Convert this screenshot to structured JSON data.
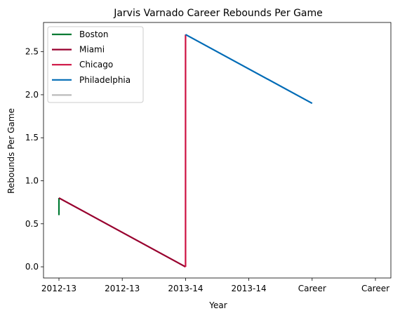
{
  "chart_data": {
    "type": "line",
    "title": "Jarvis Varnado Career Rebounds Per Game",
    "xlabel": "Year",
    "ylabel": "Rebounds Per Game",
    "x_ticks": [
      "2012-13",
      "2012-13",
      "2013-14",
      "2013-14",
      "Career",
      "Career"
    ],
    "y_ticks": [
      "0.0",
      "0.5",
      "1.0",
      "1.5",
      "2.0",
      "2.5"
    ],
    "x_range": [
      0,
      5
    ],
    "ylim": [
      -0.13,
      2.84
    ],
    "legend_position": "upper-left",
    "series": [
      {
        "name": "Boston",
        "color": "#007a33",
        "points": [
          [
            0,
            0.6
          ],
          [
            0,
            0.8
          ]
        ]
      },
      {
        "name": "Miami",
        "color": "#98002e",
        "points": [
          [
            0,
            0.8
          ],
          [
            2,
            0.0
          ]
        ]
      },
      {
        "name": "Chicago",
        "color": "#ce1141",
        "points": [
          [
            2,
            0.0
          ],
          [
            2,
            2.7
          ]
        ]
      },
      {
        "name": "Philadelphia",
        "color": "#006bb6",
        "points": [
          [
            2,
            2.7
          ],
          [
            4,
            1.9
          ]
        ]
      },
      {
        "name": "",
        "color": "#bbbbbb",
        "points": []
      }
    ]
  }
}
